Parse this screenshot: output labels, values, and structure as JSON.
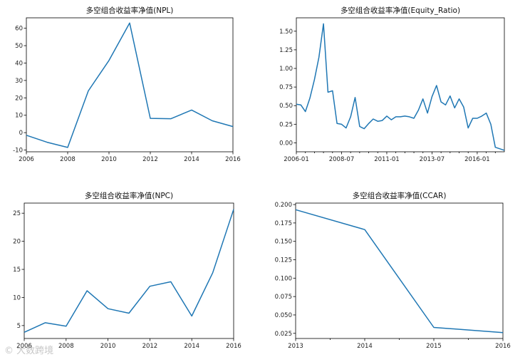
{
  "watermark": "© 大数跨境",
  "chart_data": [
    {
      "type": "line",
      "title": "多空组合收益率净值(NPL)",
      "x": [
        2006,
        2007,
        2008,
        2009,
        2010,
        2011,
        2012,
        2013,
        2014,
        2015,
        2016
      ],
      "values": [
        -1.5,
        -5.5,
        -8.5,
        24,
        41.5,
        63,
        8.2,
        8,
        13,
        6.8,
        3.5
      ],
      "xlim": [
        2006,
        2016
      ],
      "ylim": [
        -11,
        66
      ],
      "xticks": [
        2006,
        2008,
        2010,
        2012,
        2014,
        2016
      ],
      "xtick_labels": [
        "2006",
        "2008",
        "2010",
        "2012",
        "2014",
        "2016"
      ],
      "yticks": [
        -10,
        0,
        10,
        20,
        30,
        40,
        50,
        60
      ],
      "ytick_labels": [
        "-10",
        "0",
        "10",
        "20",
        "30",
        "40",
        "50",
        "60"
      ],
      "color": "#1f77b4"
    },
    {
      "type": "line",
      "title": "多空组合收益率净值(Equity_Ratio)",
      "x": [
        2006.0,
        2006.25,
        2006.5,
        2006.75,
        2007.0,
        2007.25,
        2007.5,
        2007.75,
        2008.0,
        2008.25,
        2008.5,
        2008.75,
        2009.0,
        2009.25,
        2009.5,
        2009.75,
        2010.0,
        2010.25,
        2010.5,
        2010.75,
        2011.0,
        2011.25,
        2011.5,
        2011.75,
        2012.0,
        2012.25,
        2012.5,
        2012.75,
        2013.0,
        2013.25,
        2013.5,
        2013.75,
        2014.0,
        2014.25,
        2014.5,
        2014.75,
        2015.0,
        2015.25,
        2015.5,
        2015.75,
        2016.0,
        2016.25,
        2016.5,
        2016.75,
        2017.0,
        2017.25,
        2017.5
      ],
      "values": [
        0.52,
        0.51,
        0.42,
        0.6,
        0.85,
        1.15,
        1.6,
        0.68,
        0.7,
        0.26,
        0.25,
        0.2,
        0.35,
        0.61,
        0.22,
        0.19,
        0.26,
        0.32,
        0.29,
        0.3,
        0.36,
        0.31,
        0.35,
        0.35,
        0.36,
        0.35,
        0.33,
        0.44,
        0.59,
        0.4,
        0.62,
        0.77,
        0.55,
        0.51,
        0.63,
        0.47,
        0.59,
        0.48,
        0.2,
        0.33,
        0.33,
        0.36,
        0.4,
        0.25,
        -0.06,
        -0.08,
        -0.1
      ],
      "xlim": [
        2006.0,
        2017.5
      ],
      "ylim": [
        -0.12,
        1.68
      ],
      "xticks": [
        2006.0,
        2008.5,
        2011.0,
        2013.5,
        2016.0
      ],
      "xtick_labels": [
        "2006-01",
        "2008-07",
        "2011-01",
        "2013-07",
        "2016-01"
      ],
      "minor_xticks": [
        2006.5,
        2007.0,
        2007.5,
        2008.0,
        2009.0,
        2009.5,
        2010.0,
        2010.5,
        2011.5,
        2012.0,
        2012.5,
        2013.0,
        2014.0,
        2014.5,
        2015.0,
        2015.5,
        2016.5,
        2017.0
      ],
      "yticks": [
        0.0,
        0.25,
        0.5,
        0.75,
        1.0,
        1.25,
        1.5
      ],
      "ytick_labels": [
        "0.00",
        "0.25",
        "0.50",
        "0.75",
        "1.00",
        "1.25",
        "1.50"
      ],
      "color": "#1f77b4"
    },
    {
      "type": "line",
      "title": "多空组合收益率净值(NPC)",
      "x": [
        2006,
        2007,
        2008,
        2009,
        2010,
        2011,
        2012,
        2013,
        2014,
        2015,
        2016
      ],
      "values": [
        3.8,
        5.5,
        4.9,
        11.2,
        8.0,
        7.2,
        12.0,
        12.8,
        6.7,
        14.4,
        25.7
      ],
      "xlim": [
        2006,
        2016
      ],
      "ylim": [
        2.7,
        26.8
      ],
      "xticks": [
        2006,
        2008,
        2010,
        2012,
        2014,
        2016
      ],
      "xtick_labels": [
        "2006",
        "2008",
        "2010",
        "2012",
        "2014",
        "2016"
      ],
      "yticks": [
        5,
        10,
        15,
        20,
        25
      ],
      "ytick_labels": [
        "5",
        "10",
        "15",
        "20",
        "25"
      ],
      "color": "#1f77b4"
    },
    {
      "type": "line",
      "title": "多空组合收益率净值(CCAR)",
      "x": [
        2013,
        2014,
        2015,
        2016
      ],
      "values": [
        0.193,
        0.166,
        0.033,
        0.026
      ],
      "xlim": [
        2013,
        2016
      ],
      "ylim": [
        0.018,
        0.202
      ],
      "xticks": [
        2013,
        2014,
        2015,
        2016
      ],
      "xtick_labels": [
        "2013",
        "2014",
        "2015",
        "2016"
      ],
      "minor_xticks": [
        2013.5,
        2014.5,
        2015.5
      ],
      "yticks": [
        0.025,
        0.05,
        0.075,
        0.1,
        0.125,
        0.15,
        0.175,
        0.2
      ],
      "ytick_labels": [
        "0.025",
        "0.050",
        "0.075",
        "0.100",
        "0.125",
        "0.150",
        "0.175",
        "0.200"
      ],
      "color": "#1f77b4"
    }
  ]
}
